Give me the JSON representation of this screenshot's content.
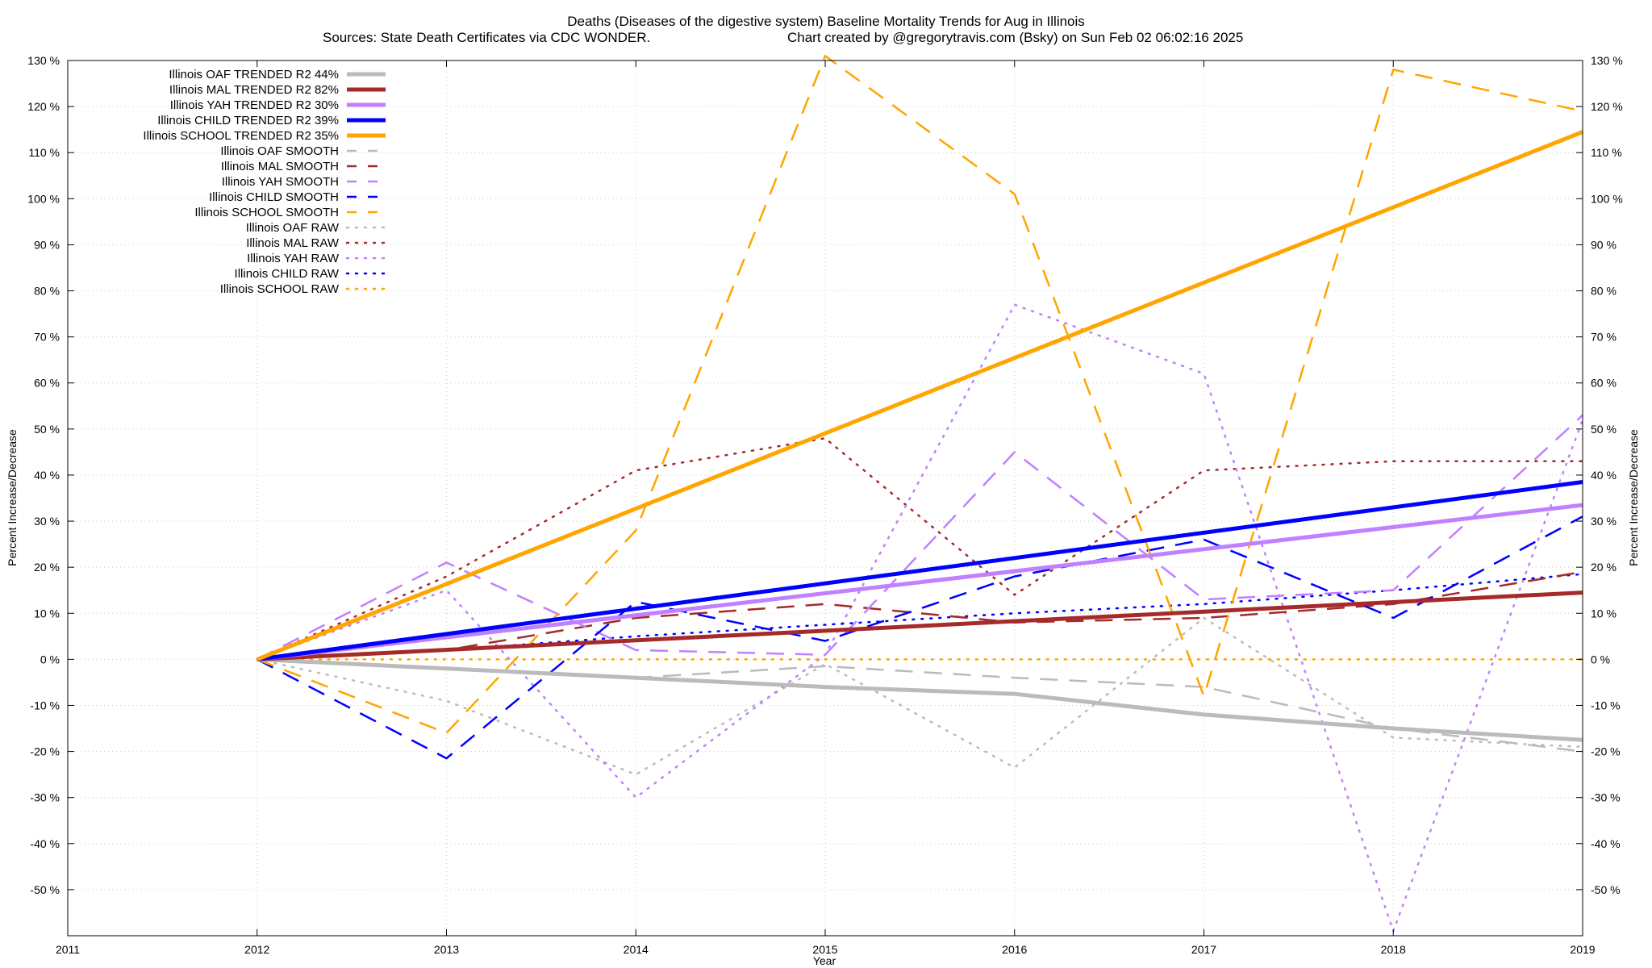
{
  "chart_data": {
    "type": "line",
    "title": "Deaths (Diseases of the digestive system)  Baseline Mortality Trends for Aug in Illinois",
    "subtitle_left": "Sources: State Death Certificates via CDC WONDER.",
    "subtitle_right": "Chart created by @gregorytravis.com (Bsky) on Sun Feb 02 06:02:16 2025",
    "xlabel": "Year",
    "ylabel": "Percent Increase/Decrease",
    "xlim": [
      2011,
      2019
    ],
    "ylim": [
      -60,
      130
    ],
    "x_ticks": [
      2011,
      2012,
      2013,
      2014,
      2015,
      2016,
      2017,
      2018,
      2019
    ],
    "x_tick_labels": [
      "2011",
      "2012",
      "2013",
      "2014",
      "2015",
      "2016",
      "2017",
      "2018",
      "2019"
    ],
    "y_ticks": [
      130,
      120,
      110,
      100,
      90,
      80,
      70,
      60,
      50,
      40,
      30,
      20,
      10,
      0,
      -10,
      -20,
      -30,
      -40,
      -50
    ],
    "y_tick_labels": [
      "130 %",
      "120 %",
      "110 %",
      "100 %",
      "90 %",
      "80 %",
      "70 %",
      "60 %",
      "50 %",
      "40 %",
      "30 %",
      "20 %",
      "10 %",
      "0 %",
      "-10 %",
      "-20 %",
      "-30 %",
      "-40 %",
      "-50 %"
    ],
    "grid": true,
    "legend_position": "top-left",
    "series": [
      {
        "name": "Illinois OAF TRENDED R2  44%",
        "style": "solid",
        "color": "#bbbbbb",
        "x": [
          2012,
          2013,
          2014,
          2015,
          2016,
          2017,
          2018,
          2019
        ],
        "values": [
          0,
          -2,
          -4,
          -6,
          -7.5,
          -12,
          -15,
          -17.5
        ]
      },
      {
        "name": "Illinois MAL TRENDED R2  82%",
        "style": "solid",
        "color": "#a52a2a",
        "x": [
          2012,
          2019
        ],
        "values": [
          0,
          14.5
        ]
      },
      {
        "name": "Illinois YAH TRENDED R2  30%",
        "style": "solid",
        "color": "#c080ff",
        "x": [
          2012,
          2019
        ],
        "values": [
          0,
          33.5
        ]
      },
      {
        "name": "Illinois CHILD TRENDED R2  39%",
        "style": "solid",
        "color": "#0000ff",
        "x": [
          2012,
          2019
        ],
        "values": [
          0,
          38.5
        ]
      },
      {
        "name": "Illinois SCHOOL TRENDED R2  35%",
        "style": "solid",
        "color": "#ffa500",
        "x": [
          2012,
          2019
        ],
        "values": [
          0,
          114.5
        ]
      },
      {
        "name": "Illinois OAF SMOOTH",
        "style": "dashed",
        "color": "#bbbbbb",
        "x": [
          2012,
          2013,
          2014,
          2015,
          2016,
          2017,
          2018,
          2019
        ],
        "values": [
          0,
          -2,
          -4,
          -1.5,
          -4,
          -6,
          -15,
          -20
        ]
      },
      {
        "name": "Illinois MAL SMOOTH",
        "style": "dashed",
        "color": "#a52a2a",
        "x": [
          2012,
          2013,
          2014,
          2015,
          2016,
          2017,
          2018,
          2019
        ],
        "values": [
          0,
          2,
          9,
          12,
          8,
          9,
          12,
          19
        ]
      },
      {
        "name": "Illinois YAH SMOOTH",
        "style": "dashed",
        "color": "#c080ff",
        "x": [
          2012,
          2013,
          2014,
          2015,
          2016,
          2017,
          2018,
          2019
        ],
        "values": [
          0,
          21,
          2,
          1,
          45,
          13,
          15,
          53
        ]
      },
      {
        "name": "Illinois CHILD SMOOTH",
        "style": "dashed",
        "color": "#0000ff",
        "x": [
          2012,
          2013,
          2014,
          2015,
          2016,
          2017,
          2018,
          2019
        ],
        "values": [
          0,
          -21.5,
          12.5,
          4,
          18,
          26,
          9,
          31
        ]
      },
      {
        "name": "Illinois SCHOOL SMOOTH",
        "style": "dashed",
        "color": "#ffa500",
        "x": [
          2012,
          2013,
          2014,
          2015,
          2016,
          2017,
          2018,
          2019
        ],
        "values": [
          0,
          -16,
          28,
          131,
          101,
          -8,
          128,
          119
        ]
      },
      {
        "name": "Illinois OAF RAW",
        "style": "dotted",
        "color": "#bbbbbb",
        "x": [
          2012,
          2013,
          2014,
          2015,
          2016,
          2017,
          2018,
          2019
        ],
        "values": [
          0,
          -9,
          -25,
          -1,
          -23.5,
          9,
          -17,
          -19
        ]
      },
      {
        "name": "Illinois MAL RAW",
        "style": "dotted",
        "color": "#a52a2a",
        "x": [
          2012,
          2013,
          2014,
          2015,
          2016,
          2017,
          2018,
          2019
        ],
        "values": [
          0,
          18,
          41,
          48,
          14,
          41,
          43,
          43
        ]
      },
      {
        "name": "Illinois YAH RAW",
        "style": "dotted",
        "color": "#c080ff",
        "x": [
          2012,
          2013,
          2014,
          2015,
          2016,
          2017,
          2018,
          2019
        ],
        "values": [
          0,
          15,
          -30,
          1,
          77,
          62,
          -59,
          52
        ]
      },
      {
        "name": "Illinois CHILD RAW",
        "style": "dotted",
        "color": "#0000ff",
        "x": [
          2012,
          2013,
          2014,
          2015,
          2016,
          2017,
          2018,
          2019
        ],
        "values": [
          0,
          2,
          5,
          7.5,
          10,
          12,
          15,
          18.5
        ]
      },
      {
        "name": "Illinois SCHOOL RAW",
        "style": "dotted",
        "color": "#ffa500",
        "x": [
          2012,
          2013,
          2014,
          2015,
          2016,
          2017,
          2018,
          2019
        ],
        "values": [
          0,
          0,
          0,
          0,
          0,
          0,
          0,
          0
        ]
      }
    ]
  }
}
